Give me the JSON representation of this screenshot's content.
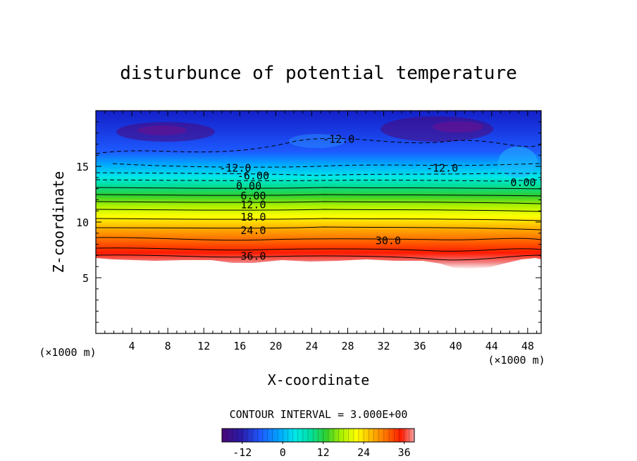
{
  "chart_data": {
    "type": "heatmap",
    "title": "disturbunce of potential temperature",
    "xlabel": "X-coordinate",
    "ylabel": "Z-coordinate",
    "x_unit": "(×1000 m)",
    "x_unit_right": "(×1000 m)",
    "xlim": [
      0,
      49.5
    ],
    "ylim": [
      0,
      20
    ],
    "x_ticks": [
      "4",
      "8",
      "12",
      "16",
      "20",
      "24",
      "28",
      "32",
      "36",
      "40",
      "44",
      "48"
    ],
    "y_ticks": [
      "5",
      "10",
      "15"
    ],
    "contour_interval_text": "CONTOUR INTERVAL = 3.000E+00",
    "colorbar_range": [
      -18,
      39
    ],
    "colorbar_ticks": [
      "-12",
      "0",
      "12",
      "24",
      "36"
    ],
    "contour_labels": [
      {
        "text": "-12.0",
        "x": 27,
        "z": 17.5
      },
      {
        "text": "-12.0",
        "x": 15.5,
        "z": 14.9
      },
      {
        "text": "-12.0",
        "x": 38.5,
        "z": 14.9
      },
      {
        "text": "-6.00",
        "x": 17.5,
        "z": 14.2
      },
      {
        "text": "0.00",
        "x": 17,
        "z": 13.3
      },
      {
        "text": "0.00",
        "x": 47.5,
        "z": 13.6
      },
      {
        "text": "6.00",
        "x": 17.5,
        "z": 12.4
      },
      {
        "text": "12.0",
        "x": 17.5,
        "z": 11.6
      },
      {
        "text": "18.0",
        "x": 17.5,
        "z": 10.5
      },
      {
        "text": "24.0",
        "x": 17.5,
        "z": 9.3
      },
      {
        "text": "30.0",
        "x": 32.5,
        "z": 8.4
      },
      {
        "text": "36.0",
        "x": 17.5,
        "z": 7.0
      }
    ]
  }
}
